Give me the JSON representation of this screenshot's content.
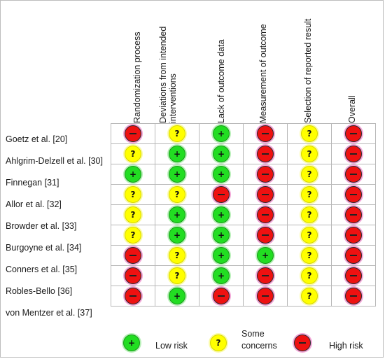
{
  "columns": [
    {
      "lines": [
        "Randomization process"
      ]
    },
    {
      "lines": [
        "Deviations from intended",
        "interventions"
      ]
    },
    {
      "lines": [
        "Lack of outcome data"
      ]
    },
    {
      "lines": [
        "Measurement of outcome"
      ]
    },
    {
      "lines": [
        "Selection of reported result"
      ]
    },
    {
      "lines": [
        "Overall"
      ]
    }
  ],
  "rows": [
    {
      "label": "Goetz et al. [20]",
      "ratings": [
        "high",
        "some",
        "low",
        "high",
        "some",
        "high"
      ]
    },
    {
      "label": "Ahlgrim-Delzell et al. [30]",
      "ratings": [
        "some",
        "low",
        "low",
        "high",
        "some",
        "high"
      ]
    },
    {
      "label": "Finnegan [31]",
      "ratings": [
        "low",
        "low",
        "low",
        "high",
        "some",
        "high"
      ]
    },
    {
      "label": "Allor et al. [32]",
      "ratings": [
        "some",
        "some",
        "high",
        "high",
        "some",
        "high"
      ]
    },
    {
      "label": "Browder et al. [33]",
      "ratings": [
        "some",
        "low",
        "low",
        "high",
        "some",
        "high"
      ]
    },
    {
      "label": "Burgoyne et al. [34]",
      "ratings": [
        "some",
        "low",
        "low",
        "high",
        "some",
        "high"
      ]
    },
    {
      "label": "Conners et al. [35]",
      "ratings": [
        "high",
        "some",
        "low",
        "low",
        "some",
        "high"
      ]
    },
    {
      "label": "Robles-Bello [36]",
      "ratings": [
        "high",
        "some",
        "low",
        "high",
        "some",
        "high"
      ]
    },
    {
      "label": "von Mentzer et al. [37]",
      "ratings": [
        "high",
        "low",
        "high",
        "high",
        "some",
        "high"
      ]
    }
  ],
  "symbols": {
    "low": "+",
    "some": "?",
    "high": ""
  },
  "legend": {
    "low_label": "Low risk",
    "some_label_line1": "Some",
    "some_label_line2": "concerns",
    "high_label": "High risk"
  },
  "colors": {
    "low": "#22dd22",
    "some": "#ffff00",
    "high": "#ee1111"
  }
}
